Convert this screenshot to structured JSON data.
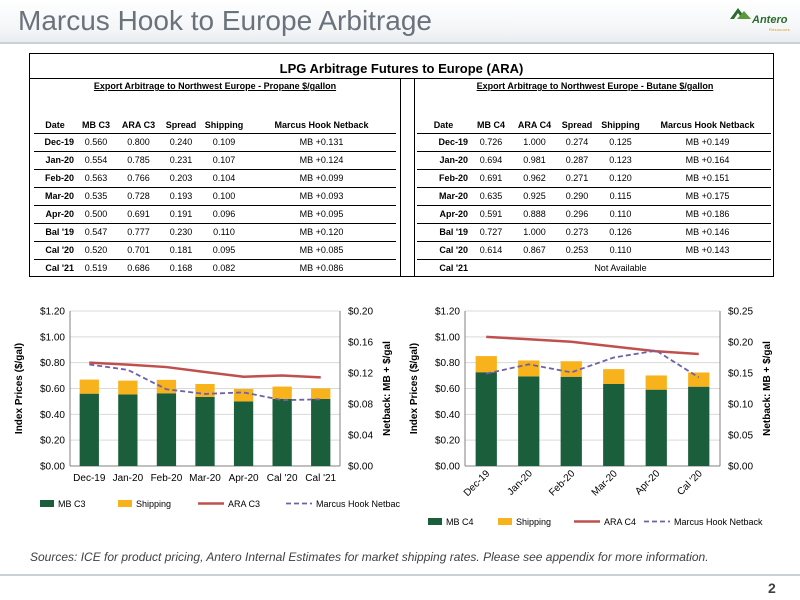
{
  "header": {
    "title": "Marcus Hook to Europe Arbitrage",
    "logo_text": "Antero",
    "logo_subtext": "Resources"
  },
  "table": {
    "title": "LPG Arbitrage Futures to Europe (ARA)",
    "left": {
      "subtitle": "Export Arbitrage to Northwest Europe - Propane $/gallon",
      "columns": [
        "Date",
        "MB C3",
        "ARA C3",
        "Spread",
        "Shipping",
        "Marcus Hook Netback"
      ],
      "rows": [
        [
          "Dec-19",
          "0.560",
          "0.800",
          "0.240",
          "0.109",
          "MB +0.131"
        ],
        [
          "Jan-20",
          "0.554",
          "0.785",
          "0.231",
          "0.107",
          "MB +0.124"
        ],
        [
          "Feb-20",
          "0.563",
          "0.766",
          "0.203",
          "0.104",
          "MB +0.099"
        ],
        [
          "Mar-20",
          "0.535",
          "0.728",
          "0.193",
          "0.100",
          "MB +0.093"
        ],
        [
          "Apr-20",
          "0.500",
          "0.691",
          "0.191",
          "0.096",
          "MB +0.095"
        ],
        [
          "Bal '19",
          "0.547",
          "0.777",
          "0.230",
          "0.110",
          "MB +0.120"
        ],
        [
          "Cal '20",
          "0.520",
          "0.701",
          "0.181",
          "0.095",
          "MB +0.085"
        ],
        [
          "Cal '21",
          "0.519",
          "0.686",
          "0.168",
          "0.082",
          "MB +0.086"
        ]
      ]
    },
    "right": {
      "subtitle": "Export Arbitrage to Northwest Europe - Butane $/gallon",
      "columns": [
        "Date",
        "MB C4",
        "ARA C4",
        "Spread",
        "Shipping",
        "Marcus Hook Netback"
      ],
      "rows": [
        [
          "Dec-19",
          "0.726",
          "1.000",
          "0.274",
          "0.125",
          "MB +0.149"
        ],
        [
          "Jan-20",
          "0.694",
          "0.981",
          "0.287",
          "0.123",
          "MB +0.164"
        ],
        [
          "Feb-20",
          "0.691",
          "0.962",
          "0.271",
          "0.120",
          "MB +0.151"
        ],
        [
          "Mar-20",
          "0.635",
          "0.925",
          "0.290",
          "0.115",
          "MB +0.175"
        ],
        [
          "Apr-20",
          "0.591",
          "0.888",
          "0.296",
          "0.110",
          "MB +0.186"
        ],
        [
          "Bal '19",
          "0.727",
          "1.000",
          "0.273",
          "0.126",
          "MB +0.146"
        ],
        [
          "Cal '20",
          "0.614",
          "0.867",
          "0.253",
          "0.110",
          "MB +0.143"
        ]
      ],
      "last_row_date": "Cal '21",
      "last_row_note": "Not Available"
    }
  },
  "chart_data": [
    {
      "type": "bar",
      "stacked": true,
      "categories": [
        "Dec-19",
        "Jan-20",
        "Feb-20",
        "Mar-20",
        "Apr-20",
        "Cal '20",
        "Cal '21"
      ],
      "ylabel": "Index Prices ($/gal)",
      "y2label": "Netback: MB + $/gal",
      "ylim": [
        0,
        1.2
      ],
      "yticks": [
        "$0.00",
        "$0.20",
        "$0.40",
        "$0.60",
        "$0.80",
        "$1.00",
        "$1.20"
      ],
      "y2lim": [
        0,
        0.2
      ],
      "y2ticks": [
        "$0.00",
        "$0.04",
        "$0.08",
        "$0.12",
        "$0.16",
        "$0.20"
      ],
      "rotate_x_labels": false,
      "legend_position": "bottom",
      "series": [
        {
          "name": "MB C3",
          "type": "bar",
          "axis": "left",
          "color": "#1b5e3b",
          "values": [
            0.56,
            0.554,
            0.563,
            0.535,
            0.5,
            0.52,
            0.519
          ]
        },
        {
          "name": "Shipping",
          "type": "bar",
          "axis": "left",
          "color": "#f8b21c",
          "values": [
            0.109,
            0.107,
            0.104,
            0.1,
            0.096,
            0.095,
            0.082
          ]
        },
        {
          "name": "ARA C3",
          "type": "line",
          "axis": "left",
          "color": "#c0504d",
          "values": [
            0.8,
            0.785,
            0.766,
            0.728,
            0.691,
            0.701,
            0.686
          ]
        },
        {
          "name": "Marcus Hook Netback",
          "type": "line",
          "dashed": true,
          "axis": "right",
          "color": "#7060a8",
          "values": [
            0.131,
            0.124,
            0.099,
            0.093,
            0.095,
            0.085,
            0.086
          ]
        }
      ]
    },
    {
      "type": "bar",
      "stacked": true,
      "categories": [
        "Dec-19",
        "Jan-20",
        "Feb-20",
        "Mar-20",
        "Apr-20",
        "Cal '20"
      ],
      "ylabel": "Index Prices ($/gal)",
      "y2label": "Netback: MB + $/gal",
      "ylim": [
        0,
        1.2
      ],
      "yticks": [
        "$0.00",
        "$0.20",
        "$0.40",
        "$0.60",
        "$0.80",
        "$1.00",
        "$1.20"
      ],
      "y2lim": [
        0,
        0.25
      ],
      "y2ticks": [
        "$0.00",
        "$0.05",
        "$0.10",
        "$0.15",
        "$0.20",
        "$0.25"
      ],
      "rotate_x_labels": true,
      "legend_position": "bottom",
      "series": [
        {
          "name": "MB C4",
          "type": "bar",
          "axis": "left",
          "color": "#1b5e3b",
          "values": [
            0.726,
            0.694,
            0.691,
            0.635,
            0.591,
            0.614
          ]
        },
        {
          "name": "Shipping",
          "type": "bar",
          "axis": "left",
          "color": "#f8b21c",
          "values": [
            0.125,
            0.123,
            0.12,
            0.115,
            0.11,
            0.11
          ]
        },
        {
          "name": "ARA C4",
          "type": "line",
          "axis": "left",
          "color": "#c0504d",
          "values": [
            1.0,
            0.981,
            0.962,
            0.925,
            0.888,
            0.867
          ]
        },
        {
          "name": "Marcus Hook Netback",
          "type": "line",
          "dashed": true,
          "axis": "right",
          "color": "#7060a8",
          "values": [
            0.149,
            0.164,
            0.151,
            0.175,
            0.186,
            0.143
          ]
        }
      ]
    }
  ],
  "footer": {
    "note": "Sources: ICE for product pricing, Antero Internal Estimates for market shipping rates. Please see appendix for more information.",
    "page_number": "2"
  }
}
